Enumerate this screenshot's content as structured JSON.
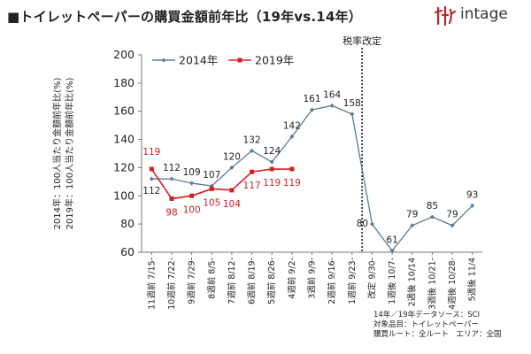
{
  "title": "■トイレットペーパーの購買金額前年比（19年vs.14年）",
  "brand": {
    "name": "intage",
    "color": "#c0262d",
    "icon": "intage-logo-icon"
  },
  "footer": {
    "lines": [
      "14年／19年データソース：SCI",
      "対象品目：トイレットペーパー",
      "購買ルート：全ルート　エリア：全国"
    ]
  },
  "chart_data": {
    "type": "line",
    "categories": [
      "11週前 7/15-",
      "10週前 7/22-",
      "9週前 7/29-",
      "8週前 8/5-",
      "7週前 8/12-",
      "6週前 8/19-",
      "5週前 8/26-",
      "4週前 9/2-",
      "3週前 9/9-",
      "2週前 9/16-",
      "1週前 9/23-",
      "改定 9/30-",
      "1週後 10/7-",
      "2週後 10/14",
      "3週後 10/21-",
      "4週後 10/28-",
      "5週後 11/4"
    ],
    "series": [
      {
        "name": "2014年",
        "color": "#5b7b92",
        "values": [
          112,
          112,
          109,
          107,
          120,
          132,
          124,
          142,
          161,
          164,
          158,
          80,
          61,
          79,
          85,
          79,
          93
        ],
        "labels": [
          "112",
          "112",
          "109",
          "107",
          "120",
          "132",
          "124",
          "142",
          "161",
          "164",
          "158",
          "80",
          "61",
          "79",
          "85",
          "79",
          "93"
        ]
      },
      {
        "name": "2019年",
        "color": "#d42020",
        "values": [
          119,
          98,
          100,
          105,
          104,
          117,
          119,
          119,
          null,
          null,
          null,
          null,
          null,
          null,
          null,
          null,
          null
        ],
        "labels": [
          "119",
          "98",
          "100",
          "105",
          "104",
          "117",
          "119",
          "119"
        ]
      }
    ],
    "ylabels": [
      "2014年：100人当たり金額前年比(%)",
      "2019年：100人当たり金額前年比(%)"
    ],
    "ylim": [
      60,
      200
    ],
    "yticks": [
      "60",
      "80",
      "100",
      "120",
      "140",
      "160",
      "180",
      "200"
    ],
    "grid": false,
    "legend": "top-left",
    "annotation": {
      "text": "税率改定",
      "at_category": "改定 9/30-",
      "style": "dashed-vertical-line"
    }
  }
}
